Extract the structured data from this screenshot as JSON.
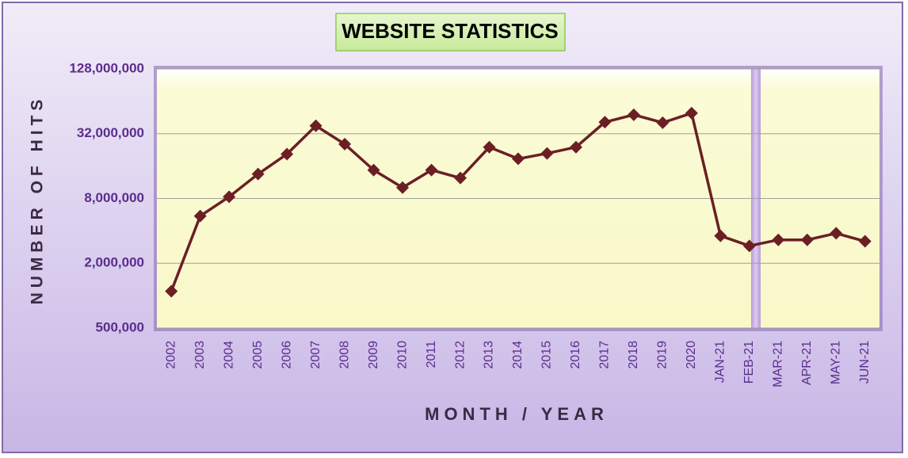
{
  "chart_data": {
    "type": "line",
    "title": "WEBSITE STATISTICS",
    "x_label": "MONTH / YEAR",
    "y_label": "NUMBER OF HITS",
    "categories": [
      "2002",
      "2003",
      "2004",
      "2005",
      "2006",
      "2007",
      "2008",
      "2009",
      "2010",
      "2011",
      "2012",
      "2013",
      "2014",
      "2015",
      "2016",
      "2017",
      "2018",
      "2019",
      "2020",
      "JAN-21",
      "FEB-21",
      "MAR-21",
      "APR-21",
      "MAY-21",
      "JUN-21"
    ],
    "series": [
      {
        "name": "Hits",
        "color": "#6b1f24",
        "values": [
          1100000,
          5500000,
          8300000,
          13500000,
          20700000,
          37900000,
          25600000,
          14700000,
          10100000,
          14700000,
          12400000,
          24000000,
          18700000,
          21000000,
          24000000,
          41000000,
          48000000,
          40500000,
          49700000,
          3600000,
          2900000,
          3300000,
          3300000,
          3800000,
          3200000
        ]
      }
    ],
    "ylim": [
      500000,
      128000000
    ],
    "log_scale": true,
    "yticks": [
      {
        "value": 500000,
        "label": "500,000"
      },
      {
        "value": 2000000,
        "label": "2,000,000"
      },
      {
        "value": 8000000,
        "label": "8,000,000"
      },
      {
        "value": 32000000,
        "label": "32,000,000"
      },
      {
        "value": 128000000,
        "label": "128,000,000"
      }
    ],
    "grid": true
  }
}
